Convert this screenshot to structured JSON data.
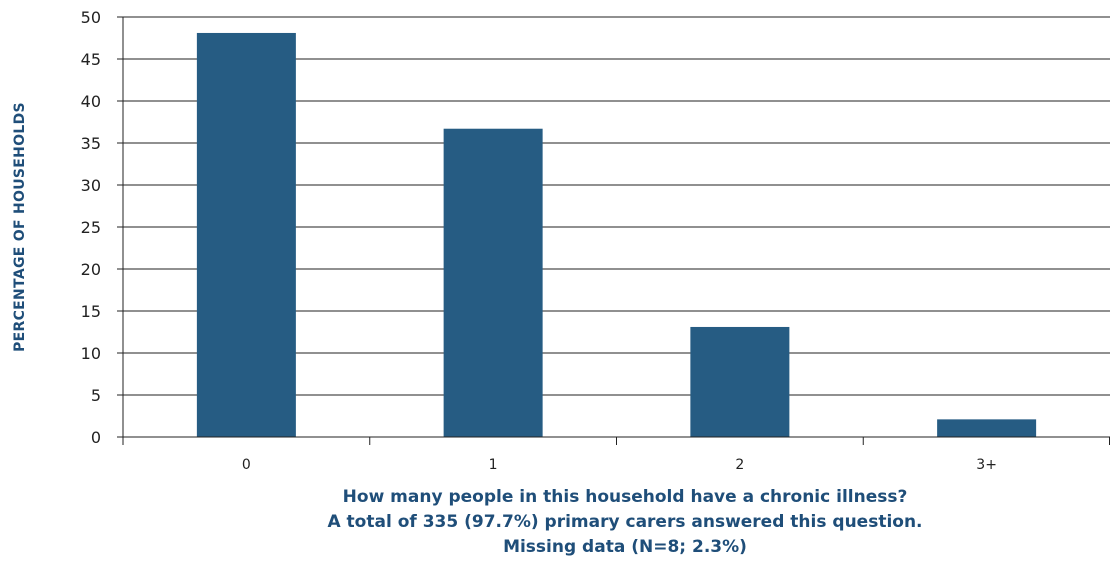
{
  "chart_data": {
    "type": "bar",
    "categories": [
      "0",
      "1",
      "2",
      "3+"
    ],
    "values": [
      48.1,
      36.7,
      13.1,
      2.1
    ],
    "ylabel": "PERCENTAGE OF HOUSEHOLDS",
    "ylim": [
      0,
      50
    ],
    "yticks": [
      0,
      5,
      10,
      15,
      20,
      25,
      30,
      35,
      40,
      45,
      50
    ],
    "grid": true,
    "bar_color": "#265c83",
    "caption": [
      "How many people in this household have a chronic illness?",
      "A total of 335 (97.7%) primary carers answered this question.",
      "Missing data (N=8; 2.3%)"
    ]
  }
}
